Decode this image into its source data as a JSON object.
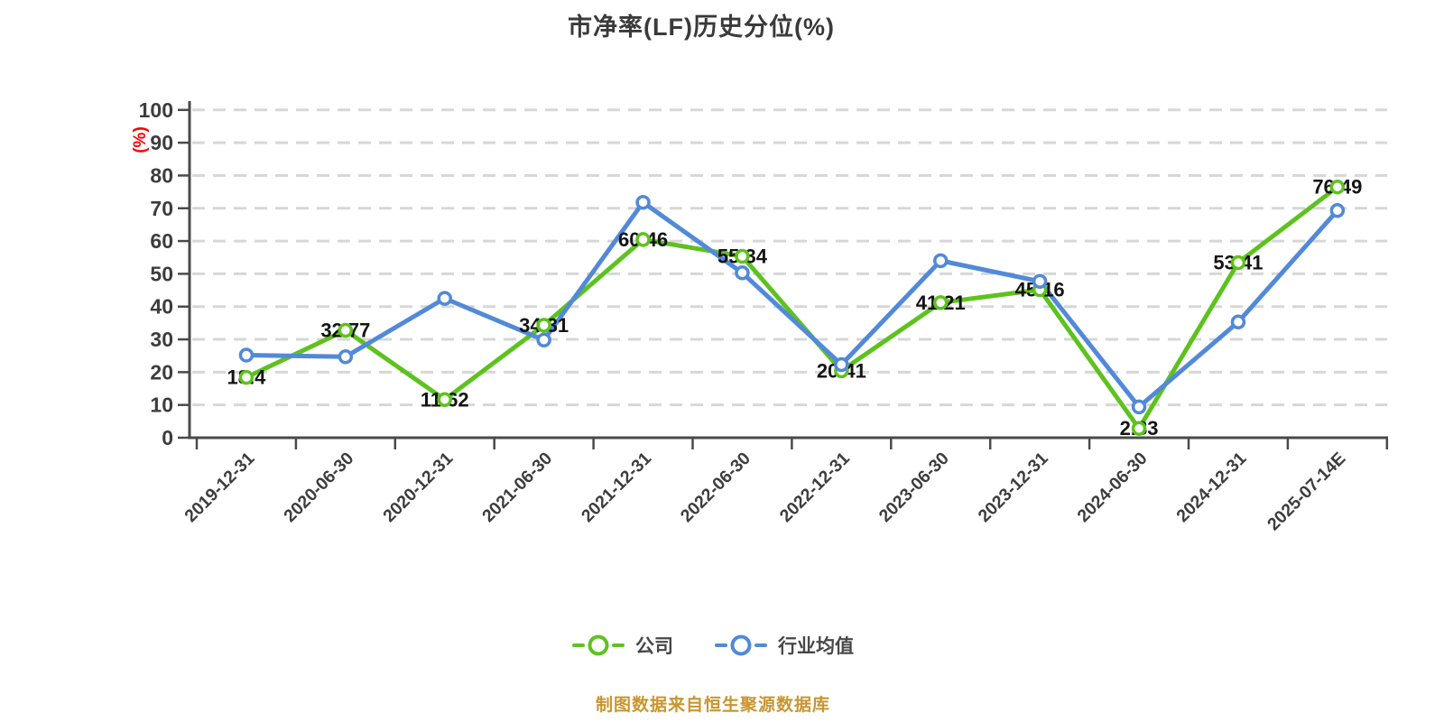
{
  "title": "市净率(LF)历史分位(%)",
  "y_axis_unit": "(%)",
  "footer": "制图数据来自恒生聚源数据库",
  "colors": {
    "company": "#5ec21e",
    "industry": "#5289d8",
    "grid": "#d7d7d7",
    "axis": "#4a4a4a",
    "tick_label": "#3d3d3d",
    "data_label": "#141414",
    "percent_label": "#fe0000",
    "footer_text": "#c9952e",
    "background": "#ffffff"
  },
  "legend": {
    "items": [
      {
        "name": "公司",
        "color": "#5ec21e"
      },
      {
        "name": "行业均值",
        "color": "#5289d8"
      }
    ],
    "position": "bottom"
  },
  "chart_data": {
    "type": "line",
    "title": "市净率(LF)历史分位(%)",
    "ylabel": "(%)",
    "ylim": [
      0,
      100
    ],
    "y_ticks": [
      0,
      10,
      20,
      30,
      40,
      50,
      60,
      70,
      80,
      90,
      100
    ],
    "grid": "horizontal dashed",
    "legend_position": "bottom",
    "categories": [
      "2019-12-31",
      "2020-06-30",
      "2020-12-31",
      "2021-06-30",
      "2021-12-31",
      "2022-06-30",
      "2022-12-31",
      "2023-06-30",
      "2023-12-31",
      "2024-06-30",
      "2024-12-31",
      "2025-07-14E"
    ],
    "series": [
      {
        "name": "公司",
        "color": "#5ec21e",
        "values": [
          18.4,
          32.77,
          11.62,
          34.31,
          60.46,
          55.34,
          20.41,
          41.21,
          45.16,
          2.83,
          53.41,
          76.49
        ],
        "data_labels_shown": true
      },
      {
        "name": "行业均值",
        "color": "#5289d8",
        "values": [
          25.2,
          24.7,
          42.5,
          29.8,
          71.8,
          50.3,
          22.3,
          54.0,
          47.7,
          9.4,
          35.3,
          69.3
        ],
        "data_labels_shown": false
      }
    ]
  }
}
